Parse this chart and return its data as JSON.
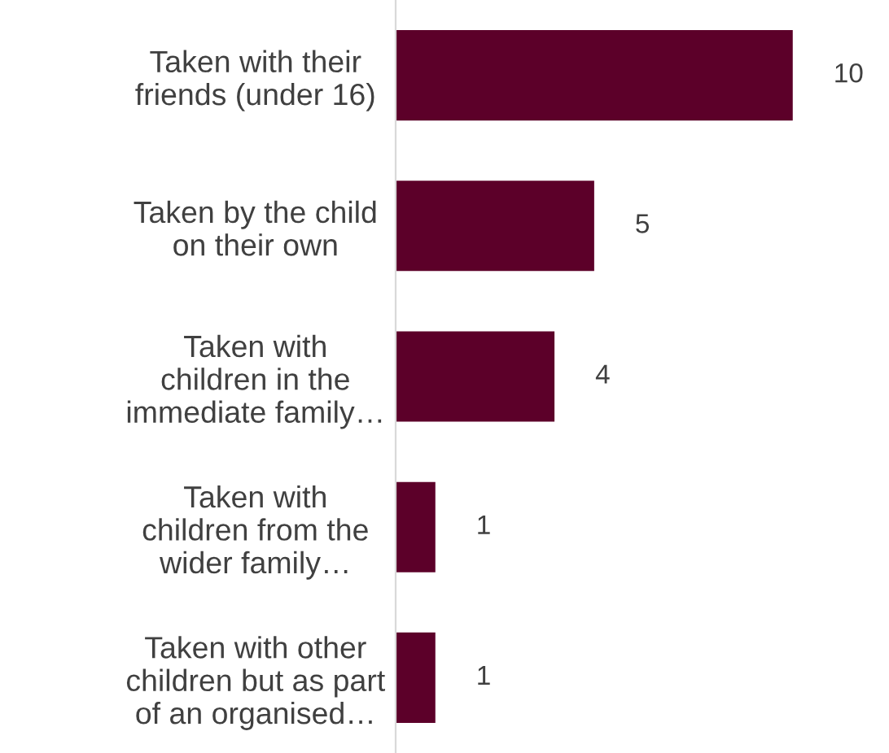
{
  "chart_data": {
    "type": "bar",
    "orientation": "horizontal",
    "categories": [
      "Taken with their\nfriends (under 16)",
      "Taken by the child\non their own",
      "Taken with\nchildren in the\nimmediate family…",
      "Taken with\nchildren from the\nwider family…",
      "Taken with other\nchildren but as part\nof an organised…"
    ],
    "values": [
      10,
      5,
      4,
      1,
      1
    ],
    "color": "#5c0029",
    "data_labels": true,
    "grid": false,
    "legend": false
  }
}
